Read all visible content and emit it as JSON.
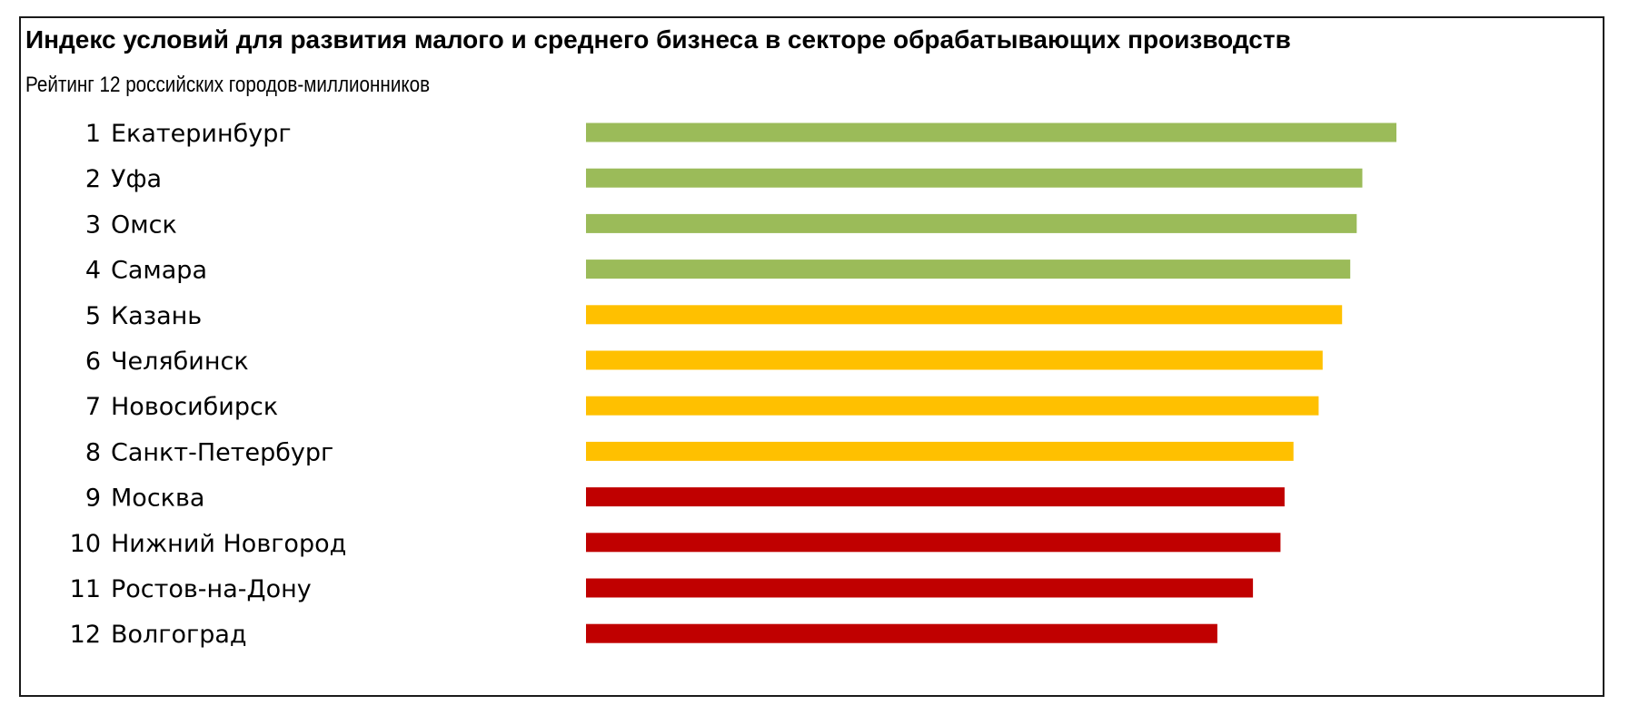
{
  "chart_data": {
    "type": "bar",
    "orientation": "horizontal",
    "title": "Индекс условий для развития малого и среднего бизнеса в секторе обрабатывающих производств",
    "subtitle": "Рейтинг 12 российских городов-миллионников",
    "xlabel": "",
    "ylabel": "",
    "xlim": [
      0,
      100
    ],
    "grid": false,
    "legend": "none",
    "categories": [
      {
        "rank": "1",
        "city": "Екатеринбург"
      },
      {
        "rank": "2",
        "city": "Уфа"
      },
      {
        "rank": "3",
        "city": "Омск"
      },
      {
        "rank": "4",
        "city": "Самара"
      },
      {
        "rank": "5",
        "city": "Казань"
      },
      {
        "rank": "6",
        "city": "Челябинск"
      },
      {
        "rank": "7",
        "city": "Новосибирск"
      },
      {
        "rank": "8",
        "city": "Санкт-Петербург"
      },
      {
        "rank": "9",
        "city": "Москва"
      },
      {
        "rank": "10",
        "city": "Нижний Новгород"
      },
      {
        "rank": "11",
        "city": "Ростов-на-Дону"
      },
      {
        "rank": "12",
        "city": "Волгоград"
      }
    ],
    "values": [
      100,
      95.8,
      95.1,
      94.3,
      93.3,
      90.9,
      90.4,
      87.3,
      86.2,
      85.7,
      82.3,
      77.9
    ],
    "bar_colors": [
      "#9BBB59",
      "#9BBB59",
      "#9BBB59",
      "#9BBB59",
      "#FFC000",
      "#FFC000",
      "#FFC000",
      "#FFC000",
      "#C00000",
      "#C00000",
      "#C00000",
      "#C00000"
    ]
  }
}
